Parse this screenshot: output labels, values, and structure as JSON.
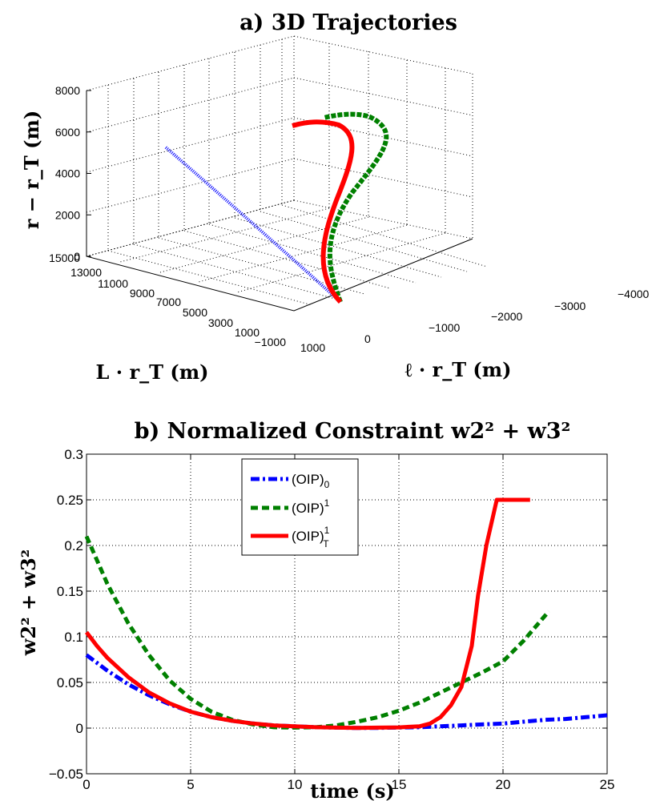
{
  "chart_data": [
    {
      "type": "line",
      "title": "a)  3D Trajectories",
      "xlabel": "L · r_T  (m)",
      "ylabel": "ℓ · r_T  (m)",
      "zlabel": "r − r_T  (m)",
      "x_ticks": [
        "15000",
        "13000",
        "11000",
        "9000",
        "7000",
        "5000",
        "3000",
        "1000",
        "−1000"
      ],
      "y_ticks": [
        "1000",
        "0",
        "−1000",
        "−2000",
        "−3000",
        "−4000"
      ],
      "z_ticks": [
        "0",
        "2000",
        "4000",
        "6000",
        "8000"
      ],
      "grid": true,
      "series": [
        {
          "name": "(OIP)_0",
          "color": "#0000ff",
          "style": "dash-dot",
          "points": [
            [
              8800,
              300,
              4400
            ],
            [
              7000,
              220,
              3100
            ],
            [
              5000,
              140,
              1900
            ],
            [
              3000,
              60,
              900
            ],
            [
              1000,
              0,
              0
            ]
          ]
        },
        {
          "name": "(OIP)^1",
          "color": "#008000",
          "style": "dashed",
          "points": [
            [
              1000,
              0,
              0
            ],
            [
              1000,
              -200,
              1200
            ],
            [
              1000,
              -700,
              2400
            ],
            [
              1000,
              -1200,
              3600
            ],
            [
              1000,
              -1500,
              4800
            ],
            [
              1000,
              -1600,
              5900
            ],
            [
              1000,
              -1300,
              6700
            ],
            [
              1000,
              -700,
              6800
            ]
          ]
        },
        {
          "name": "(OIP)_T^1",
          "color": "#ff0000",
          "style": "solid",
          "points": [
            [
              1000,
              0,
              0
            ],
            [
              1000,
              100,
              1500
            ],
            [
              1000,
              -200,
              3000
            ],
            [
              1000,
              -500,
              4400
            ],
            [
              1000,
              -600,
              5600
            ],
            [
              1000,
              -400,
              6300
            ],
            [
              1000,
              100,
              6500
            ],
            [
              1000,
              700,
              6200
            ]
          ]
        }
      ]
    },
    {
      "type": "line",
      "title": "b)  Normalized Constraint  w2² + w3²",
      "xlabel": "time  (s)",
      "ylabel": "w2² + w3²",
      "xlim": [
        0,
        25
      ],
      "ylim": [
        -0.05,
        0.3
      ],
      "x_ticks": [
        "0",
        "5",
        "10",
        "15",
        "20",
        "25"
      ],
      "y_ticks": [
        "−0.05",
        "0",
        "0.05",
        "0.1",
        "0.15",
        "0.2",
        "0.25",
        "0.3"
      ],
      "grid": true,
      "legend": "top-center",
      "series": [
        {
          "name": "(OIP)_0",
          "color": "#0000ff",
          "style": "dash-dot",
          "x": [
            0,
            1,
            2,
            3,
            4,
            5,
            6,
            7,
            8,
            9,
            10,
            11,
            12,
            13,
            14,
            15,
            16,
            17,
            18,
            19,
            20,
            21,
            22,
            23,
            24,
            25
          ],
          "y": [
            0.08,
            0.063,
            0.048,
            0.036,
            0.026,
            0.018,
            0.012,
            0.008,
            0.005,
            0.003,
            0.002,
            0.001,
            0.0005,
            0.0002,
            0.0003,
            0.0006,
            0.001,
            0.002,
            0.003,
            0.004,
            0.005,
            0.007,
            0.009,
            0.01,
            0.012,
            0.014
          ]
        },
        {
          "name": "(OIP)^1",
          "color": "#008000",
          "style": "dashed",
          "x": [
            0,
            1,
            2,
            3,
            4,
            5,
            6,
            7,
            8,
            9,
            10,
            11,
            12,
            13,
            14,
            15,
            16,
            17,
            18,
            19,
            20,
            21,
            22.2
          ],
          "y": [
            0.21,
            0.158,
            0.115,
            0.08,
            0.052,
            0.032,
            0.018,
            0.009,
            0.004,
            0.001,
            0.0005,
            0.001,
            0.003,
            0.007,
            0.012,
            0.019,
            0.028,
            0.039,
            0.05,
            0.061,
            0.073,
            0.096,
            0.128
          ]
        },
        {
          "name": "(OIP)_T^1",
          "color": "#ff0000",
          "style": "solid",
          "x": [
            0,
            0.5,
            1,
            2,
            3,
            4,
            5,
            6,
            7,
            8,
            9,
            10,
            11,
            12,
            13,
            14,
            15,
            16,
            16.5,
            17,
            17.5,
            18,
            18.5,
            18.8,
            19.2,
            19.7,
            20,
            21.3
          ],
          "y": [
            0.105,
            0.09,
            0.077,
            0.056,
            0.039,
            0.027,
            0.018,
            0.012,
            0.008,
            0.005,
            0.003,
            0.002,
            0.001,
            0.0005,
            0.0003,
            0.0005,
            0.0008,
            0.002,
            0.005,
            0.012,
            0.025,
            0.045,
            0.09,
            0.145,
            0.2,
            0.25,
            0.25,
            0.25
          ]
        }
      ]
    }
  ]
}
